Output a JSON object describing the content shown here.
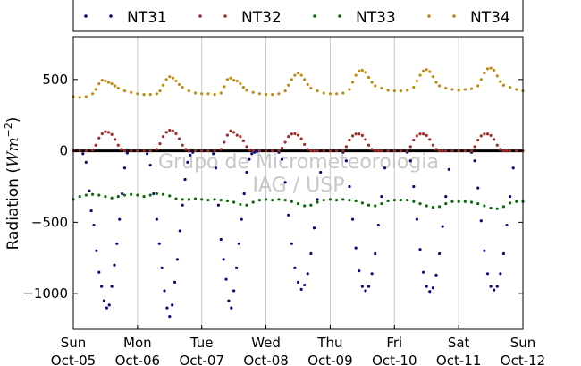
{
  "chart_data": {
    "type": "scatter",
    "title": "",
    "xlabel": "",
    "ylabel": "Radiation (Wm⁻²)",
    "ylabel_main": "Radiation (",
    "ylabel_unit": "Wm",
    "ylabel_exp": "−2",
    "ylabel_close": ")",
    "xlim": [
      0,
      7
    ],
    "ylim": [
      -1250,
      800
    ],
    "yticks": [
      500,
      0,
      -500,
      -1000
    ],
    "ytick_labels": [
      "500",
      "0",
      "−500",
      "−1000"
    ],
    "xticks": [
      0,
      1,
      2,
      3,
      4,
      5,
      6,
      7
    ],
    "xtick_labels": [
      [
        "Sun",
        "Oct-05"
      ],
      [
        "Mon",
        "Oct-06"
      ],
      [
        "Tue",
        "Oct-07"
      ],
      [
        "Wed",
        "Oct-08"
      ],
      [
        "Thu",
        "Oct-09"
      ],
      [
        "Fri",
        "Oct-10"
      ],
      [
        "Sat",
        "Oct-11"
      ],
      [
        "Sun",
        "Oct-12"
      ]
    ],
    "grid": "vertical",
    "legend_position": "top",
    "zero_line": true,
    "watermark": [
      "Grupo de Micrometeorologia",
      "IAG / USP"
    ],
    "series": [
      {
        "name": "NT31",
        "color": "#0a0a80",
        "x": [
          0.15,
          0.2,
          0.25,
          0.28,
          0.32,
          0.36,
          0.4,
          0.44,
          0.48,
          0.52,
          0.56,
          0.6,
          0.64,
          0.68,
          0.72,
          0.76,
          0.8,
          0.84,
          1.15,
          1.2,
          1.25,
          1.3,
          1.34,
          1.38,
          1.42,
          1.46,
          1.5,
          1.54,
          1.58,
          1.62,
          1.66,
          1.7,
          1.74,
          1.78,
          1.82,
          1.86,
          2.18,
          2.22,
          2.26,
          2.3,
          2.34,
          2.38,
          2.42,
          2.46,
          2.5,
          2.54,
          2.58,
          2.62,
          2.66,
          2.7,
          2.74,
          2.78,
          2.82,
          2.86,
          3.2,
          3.25,
          3.3,
          3.35,
          3.4,
          3.45,
          3.5,
          3.55,
          3.6,
          3.65,
          3.7,
          3.75,
          3.8,
          3.85,
          4.2,
          4.25,
          4.3,
          4.35,
          4.4,
          4.45,
          4.5,
          4.55,
          4.6,
          4.65,
          4.7,
          4.75,
          4.8,
          4.85,
          5.2,
          5.25,
          5.3,
          5.35,
          5.4,
          5.45,
          5.5,
          5.55,
          5.6,
          5.65,
          5.7,
          5.75,
          5.8,
          5.85,
          6.2,
          6.25,
          6.3,
          6.35,
          6.4,
          6.45,
          6.5,
          6.55,
          6.6,
          6.65,
          6.7,
          6.75,
          6.8,
          6.85
        ],
        "y": [
          -20,
          -80,
          -280,
          -420,
          -520,
          -700,
          -850,
          -950,
          -1050,
          -1100,
          -1080,
          -950,
          -800,
          -650,
          -480,
          -300,
          -120,
          -15,
          -20,
          -100,
          -300,
          -480,
          -650,
          -820,
          -980,
          -1100,
          -1160,
          -1080,
          -920,
          -760,
          -560,
          -380,
          -200,
          -80,
          -30,
          -10,
          -20,
          -120,
          -380,
          -620,
          -760,
          -900,
          -1050,
          -1100,
          -980,
          -820,
          -650,
          -480,
          -300,
          -150,
          -60,
          -20,
          -10,
          -5,
          -10,
          -60,
          -220,
          -450,
          -650,
          -820,
          -920,
          -970,
          -940,
          -860,
          -720,
          -540,
          -340,
          -150,
          -10,
          -70,
          -250,
          -480,
          -680,
          -840,
          -950,
          -980,
          -950,
          -860,
          -720,
          -520,
          -320,
          -120,
          -10,
          -70,
          -250,
          -480,
          -690,
          -850,
          -950,
          -985,
          -960,
          -870,
          -720,
          -530,
          -320,
          -130,
          -10,
          -70,
          -260,
          -490,
          -700,
          -860,
          -950,
          -975,
          -950,
          -860,
          -720,
          -520,
          -320,
          -120
        ]
      },
      {
        "name": "NT32",
        "color": "#a52a2a",
        "x": [
          0,
          0.1,
          0.2,
          0.3,
          0.35,
          0.4,
          0.45,
          0.5,
          0.55,
          0.6,
          0.65,
          0.7,
          0.75,
          0.8,
          0.9,
          1.0,
          1.1,
          1.2,
          1.3,
          1.35,
          1.4,
          1.45,
          1.5,
          1.55,
          1.6,
          1.65,
          1.7,
          1.75,
          1.8,
          1.9,
          2.0,
          2.1,
          2.2,
          2.3,
          2.35,
          2.4,
          2.45,
          2.5,
          2.55,
          2.6,
          2.65,
          2.7,
          2.75,
          2.8,
          2.9,
          3.0,
          3.1,
          3.2,
          3.25,
          3.3,
          3.35,
          3.4,
          3.45,
          3.5,
          3.55,
          3.6,
          3.65,
          3.7,
          3.75,
          3.8,
          3.9,
          4.0,
          4.1,
          4.2,
          4.25,
          4.3,
          4.35,
          4.4,
          4.45,
          4.5,
          4.55,
          4.6,
          4.65,
          4.7,
          4.75,
          4.8,
          4.9,
          5.0,
          5.1,
          5.2,
          5.25,
          5.3,
          5.35,
          5.4,
          5.45,
          5.5,
          5.55,
          5.6,
          5.65,
          5.7,
          5.75,
          5.8,
          5.9,
          6.0,
          6.1,
          6.2,
          6.25,
          6.3,
          6.35,
          6.4,
          6.45,
          6.5,
          6.55,
          6.6,
          6.65,
          6.7,
          6.75,
          6.8,
          6.9,
          7.0
        ],
        "y": [
          0,
          0,
          0,
          5,
          40,
          90,
          120,
          135,
          130,
          115,
          80,
          40,
          10,
          0,
          0,
          0,
          0,
          0,
          10,
          50,
          100,
          130,
          145,
          140,
          120,
          85,
          40,
          10,
          0,
          0,
          0,
          0,
          0,
          10,
          60,
          110,
          140,
          130,
          110,
          100,
          70,
          30,
          5,
          0,
          0,
          0,
          0,
          0,
          20,
          60,
          100,
          118,
          120,
          110,
          85,
          45,
          10,
          0,
          0,
          0,
          0,
          0,
          0,
          0,
          30,
          75,
          105,
          118,
          118,
          108,
          80,
          40,
          10,
          0,
          0,
          0,
          0,
          0,
          0,
          0,
          30,
          75,
          105,
          118,
          118,
          108,
          80,
          40,
          10,
          0,
          0,
          0,
          0,
          0,
          0,
          0,
          30,
          75,
          105,
          118,
          118,
          108,
          80,
          40,
          10,
          0,
          0,
          0,
          0,
          0
        ]
      },
      {
        "name": "NT33",
        "color": "#0a6b0a",
        "x": [
          0,
          0.1,
          0.2,
          0.3,
          0.4,
          0.5,
          0.6,
          0.7,
          0.8,
          0.9,
          1.0,
          1.1,
          1.2,
          1.3,
          1.4,
          1.5,
          1.6,
          1.7,
          1.8,
          1.9,
          2.0,
          2.1,
          2.2,
          2.3,
          2.4,
          2.5,
          2.6,
          2.7,
          2.8,
          2.9,
          3.0,
          3.1,
          3.2,
          3.3,
          3.4,
          3.5,
          3.6,
          3.7,
          3.8,
          3.9,
          4.0,
          4.1,
          4.2,
          4.3,
          4.4,
          4.5,
          4.6,
          4.7,
          4.8,
          4.9,
          5.0,
          5.1,
          5.2,
          5.3,
          5.4,
          5.5,
          5.6,
          5.7,
          5.8,
          5.9,
          6.0,
          6.1,
          6.2,
          6.3,
          6.4,
          6.5,
          6.6,
          6.7,
          6.8,
          6.9,
          7.0
        ],
        "y": [
          -340,
          -320,
          -310,
          -305,
          -310,
          -320,
          -330,
          -320,
          -310,
          -305,
          -310,
          -320,
          -310,
          -300,
          -305,
          -315,
          -335,
          -340,
          -340,
          -335,
          -340,
          -345,
          -340,
          -345,
          -350,
          -360,
          -375,
          -380,
          -360,
          -345,
          -340,
          -345,
          -340,
          -345,
          -355,
          -370,
          -385,
          -380,
          -360,
          -345,
          -340,
          -345,
          -340,
          -345,
          -350,
          -365,
          -380,
          -385,
          -370,
          -350,
          -345,
          -345,
          -345,
          -355,
          -370,
          -385,
          -395,
          -390,
          -370,
          -355,
          -355,
          -355,
          -360,
          -370,
          -385,
          -400,
          -405,
          -390,
          -365,
          -355,
          -355
        ]
      },
      {
        "name": "NT34",
        "color": "#c08a10",
        "x": [
          0,
          0.1,
          0.2,
          0.3,
          0.35,
          0.4,
          0.45,
          0.5,
          0.55,
          0.6,
          0.65,
          0.7,
          0.8,
          0.9,
          1.0,
          1.1,
          1.2,
          1.3,
          1.35,
          1.4,
          1.45,
          1.5,
          1.55,
          1.6,
          1.65,
          1.7,
          1.8,
          1.9,
          2.0,
          2.1,
          2.2,
          2.3,
          2.35,
          2.4,
          2.45,
          2.5,
          2.55,
          2.6,
          2.65,
          2.7,
          2.8,
          2.9,
          3.0,
          3.1,
          3.2,
          3.3,
          3.35,
          3.4,
          3.45,
          3.5,
          3.55,
          3.6,
          3.65,
          3.7,
          3.8,
          3.9,
          4.0,
          4.1,
          4.2,
          4.3,
          4.35,
          4.4,
          4.45,
          4.5,
          4.55,
          4.6,
          4.65,
          4.7,
          4.8,
          4.9,
          5.0,
          5.1,
          5.2,
          5.3,
          5.35,
          5.4,
          5.45,
          5.5,
          5.55,
          5.6,
          5.65,
          5.7,
          5.8,
          5.9,
          6.0,
          6.1,
          6.2,
          6.3,
          6.35,
          6.4,
          6.45,
          6.5,
          6.55,
          6.6,
          6.65,
          6.7,
          6.8,
          6.9,
          7.0
        ],
        "y": [
          380,
          375,
          380,
          400,
          430,
          470,
          495,
          490,
          480,
          470,
          455,
          440,
          420,
          410,
          400,
          395,
          395,
          400,
          420,
          460,
          500,
          520,
          510,
          490,
          465,
          445,
          420,
          405,
          400,
          400,
          395,
          405,
          450,
          500,
          510,
          495,
          490,
          470,
          445,
          425,
          410,
          400,
          395,
          395,
          400,
          420,
          460,
          500,
          530,
          545,
          530,
          500,
          465,
          440,
          420,
          405,
          400,
          400,
          405,
          430,
          480,
          530,
          560,
          565,
          550,
          515,
          480,
          455,
          440,
          425,
          420,
          420,
          425,
          445,
          490,
          530,
          560,
          570,
          555,
          520,
          480,
          455,
          440,
          430,
          425,
          430,
          435,
          455,
          500,
          545,
          575,
          580,
          565,
          525,
          485,
          460,
          445,
          430,
          420
        ]
      }
    ]
  }
}
